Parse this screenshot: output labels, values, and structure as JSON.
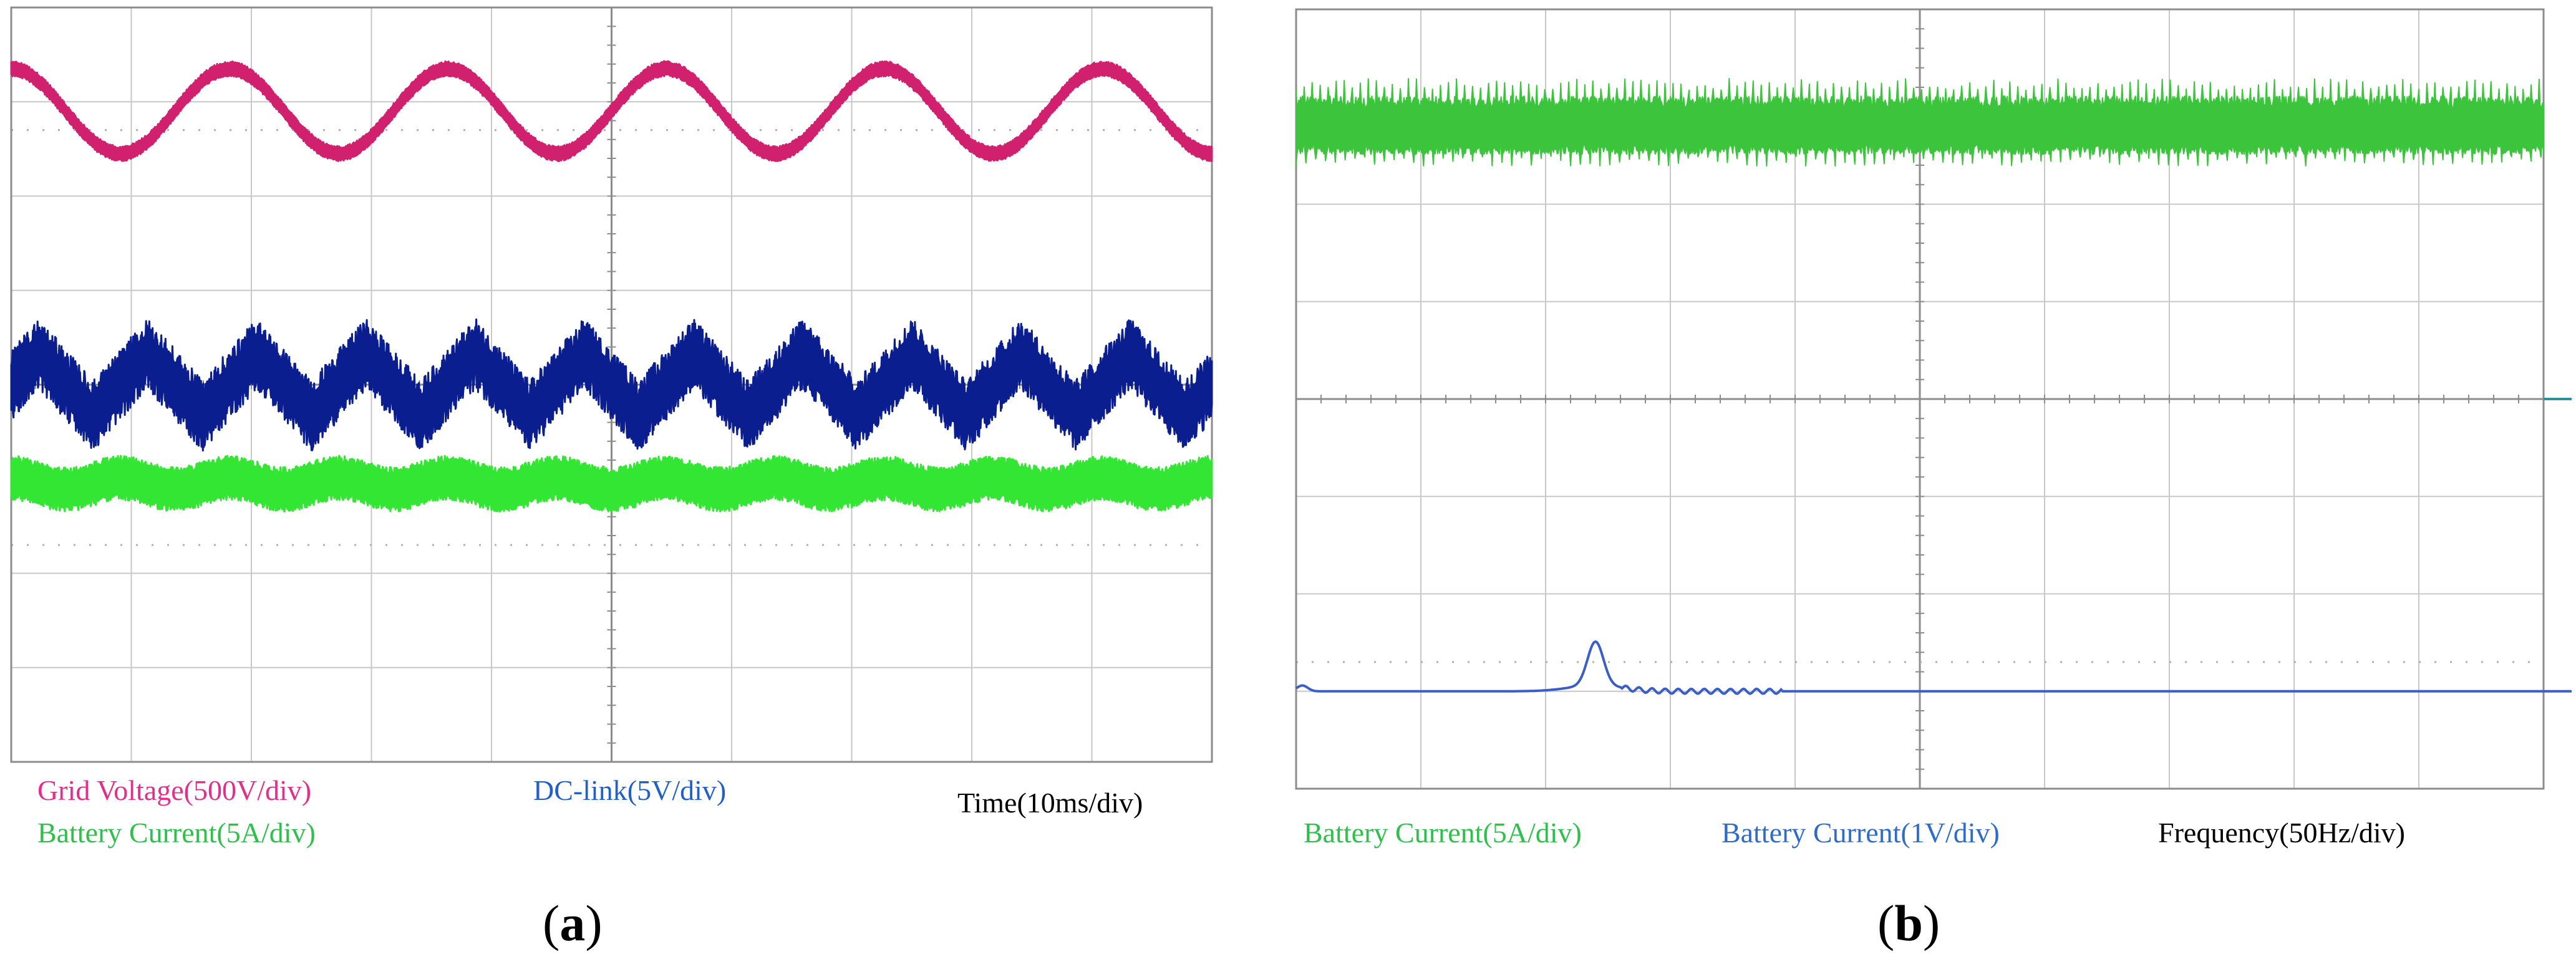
{
  "panels": [
    {
      "caption_letter": "a",
      "chart_data": {
        "type": "line",
        "title": "",
        "x_unit": "Time(10ms/div)",
        "grid": {
          "divisions_x": 10,
          "divisions_y": 8,
          "dotted_reference_lines": true
        },
        "series": [
          {
            "name": "Grid Voltage(500V/div)",
            "color": "#d0206e",
            "shape": "sinusoid",
            "cycles": 5.5,
            "level_div": 6.9,
            "amplitude_div": 0.45,
            "band_div": 0.12,
            "phase_deg": 0
          },
          {
            "name": "DC-link(5V/div)",
            "color": "#0a1e90",
            "shape": "triangle",
            "cycles": 11,
            "level_div": 4.0,
            "amplitude_div": 0.33,
            "band_div": 0.42,
            "phase_deg": 0
          },
          {
            "name": "Battery Current(5A/div)",
            "color": "#33e633",
            "shape": "sinusoid",
            "cycles": 11,
            "level_div": 2.95,
            "amplitude_div": 0.06,
            "band_div": 0.35,
            "phase_deg": 0
          }
        ]
      },
      "labels": {
        "grid_voltage": "Grid Voltage(500V/div)",
        "dc_link": "DC-link(5V/div)",
        "battery_current": "Battery Current(5A/div)",
        "time": "Time(10ms/div)"
      },
      "label_colors": {
        "grid_voltage": "#e0308c",
        "dc_link": "#2060c8",
        "battery_current": "#2ec04a",
        "time": "#000000"
      }
    },
    {
      "caption_letter": "b",
      "chart_data": {
        "type": "line",
        "title": "",
        "x_unit": "Frequency(50Hz/div)",
        "grid": {
          "divisions_x": 10,
          "divisions_y": 8,
          "dotted_reference_lines": true
        },
        "series": [
          {
            "name": "Battery Current(5A/div)",
            "color": "#3cc43c",
            "shape": "noise-band",
            "level_div": 6.8,
            "band_div": 0.38
          },
          {
            "name": "Battery Current(1V/div)",
            "color": "#3a5ec8",
            "shape": "spectrum",
            "level_div": 1.0,
            "peaks": [
              {
                "x_div": 2.4,
                "height_div": 0.45
              }
            ],
            "small_peak_x_div": 0.05
          }
        ]
      },
      "labels": {
        "battery_current_5a": "Battery Current(5A/div)",
        "battery_current_1v": "Battery Current(1V/div)",
        "frequency": "Frequency(50Hz/div)"
      },
      "label_colors": {
        "battery_current_5a": "#2ec04a",
        "battery_current_1v": "#2e6cc8",
        "frequency": "#000000"
      }
    }
  ],
  "theme": {
    "grid_color": "#c8c8c8",
    "frame_color": "#8c8c8c",
    "center_axis_color": "#8c8c8c"
  }
}
